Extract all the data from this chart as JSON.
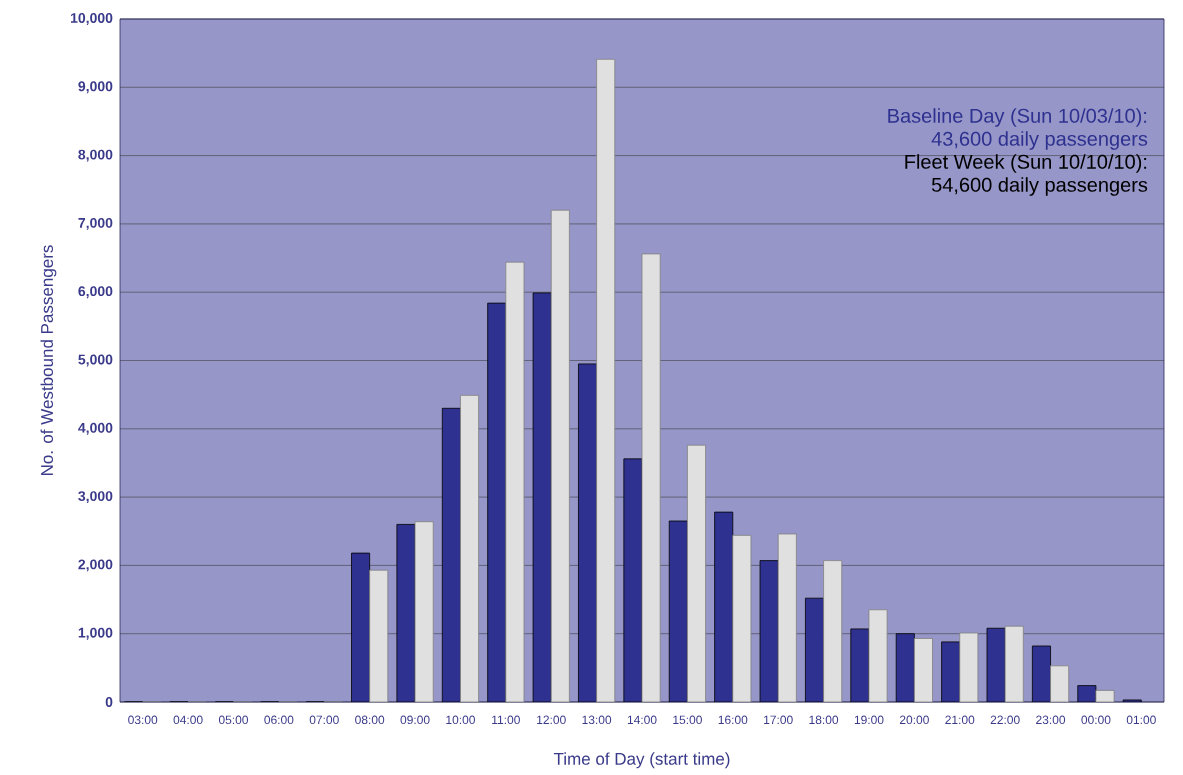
{
  "chart_data": {
    "type": "bar",
    "xlabel": "Time of Day (start time)",
    "ylabel": "No. of Westbound Passengers",
    "categories": [
      "03:00",
      "04:00",
      "05:00",
      "06:00",
      "07:00",
      "08:00",
      "09:00",
      "10:00",
      "11:00",
      "12:00",
      "13:00",
      "14:00",
      "15:00",
      "16:00",
      "17:00",
      "18:00",
      "19:00",
      "20:00",
      "21:00",
      "22:00",
      "23:00",
      "00:00",
      "01:00"
    ],
    "series": [
      {
        "color": "#2e318f",
        "values": [
          0,
          0,
          0,
          0,
          0,
          2180,
          2600,
          4300,
          5840,
          5990,
          4950,
          3560,
          2650,
          2780,
          2070,
          1520,
          1070,
          1000,
          880,
          1080,
          820,
          240,
          30
        ]
      },
      {
        "color": "#e0e0e0",
        "values": [
          0,
          0,
          0,
          0,
          0,
          1930,
          2640,
          4490,
          6440,
          7200,
          9410,
          6560,
          3760,
          2440,
          2460,
          2070,
          1350,
          930,
          1010,
          1110,
          530,
          170,
          null
        ]
      }
    ],
    "annotations": [
      "Baseline Day (Sun 10/03/10):",
      "43,600 daily passengers",
      "Fleet Week (Sun 10/10/10):",
      "54,600 daily passengers"
    ],
    "ylim": [
      0,
      10000
    ],
    "yticks": [
      0,
      {
        "value": 1000,
        "label": "1,000"
      },
      {
        "value": 2000,
        "label": "2,000"
      },
      {
        "value": 3000,
        "label": "3,000"
      },
      {
        "value": 4000,
        "label": "4,000"
      },
      {
        "value": 5000,
        "label": "5,000"
      },
      {
        "value": 6000,
        "label": "6,000"
      },
      {
        "value": 7000,
        "label": "7,000"
      },
      {
        "value": 8000,
        "label": "8,000"
      },
      {
        "value": 9000,
        "label": "9,000"
      },
      {
        "value": 10000,
        "label": "10,000"
      }
    ],
    "grid": "y"
  }
}
